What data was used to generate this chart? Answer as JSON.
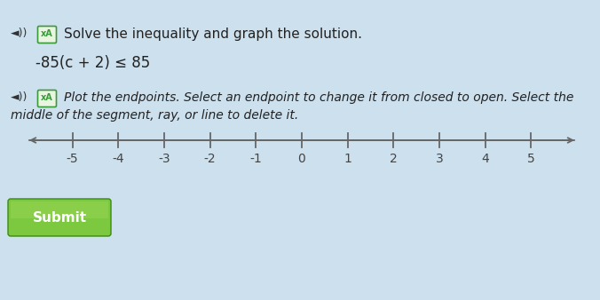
{
  "bg_color": "#cde0ee",
  "title_line1": "Solve the inequality and graph the solution.",
  "inequality": "-85(c + 2) ≤ 85",
  "instruction_part1": "Plot the endpoints. Select an endpoint to change it from closed to open. Select the",
  "instruction_part2": "middle of the segment, ray, or line to delete it.",
  "number_line_min": -5,
  "number_line_max": 5,
  "tick_labels": [
    -5,
    -4,
    -3,
    -2,
    -1,
    0,
    1,
    2,
    3,
    4,
    5
  ],
  "submit_text": "Submit",
  "submit_color_top": "#7cc940",
  "submit_color_bottom": "#4a9a1a",
  "submit_text_color": "#ffffff",
  "axis_color": "#666666",
  "tick_color": "#666666",
  "label_color": "#444444",
  "text_color": "#222222",
  "speaker_color": "#333333",
  "icon_color": "#3a9a3a",
  "title_fontsize": 11,
  "inequality_fontsize": 12,
  "instruction_fontsize": 10,
  "tick_fontsize": 10
}
